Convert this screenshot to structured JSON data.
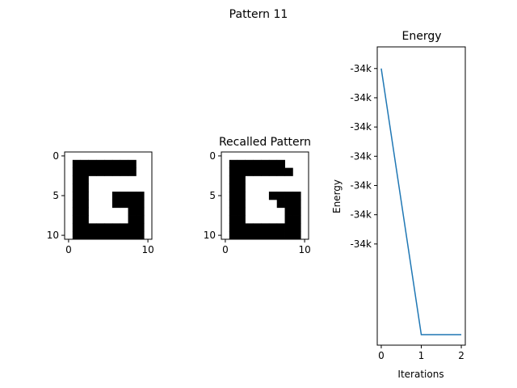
{
  "figure": {
    "title": "Pattern 11"
  },
  "chart_data": [
    {
      "type": "heatmap",
      "title": "",
      "grid_size": [
        11,
        11
      ],
      "xticks": [
        0,
        10
      ],
      "yticks": [
        0,
        5,
        10
      ],
      "colormap": {
        "0": "#ffffff",
        "1": "#000000"
      },
      "matrix": [
        [
          0,
          0,
          0,
          0,
          0,
          0,
          0,
          0,
          0,
          0,
          0
        ],
        [
          0,
          1,
          1,
          1,
          1,
          1,
          1,
          1,
          1,
          0,
          0
        ],
        [
          0,
          1,
          1,
          1,
          1,
          1,
          1,
          1,
          1,
          0,
          0
        ],
        [
          0,
          1,
          1,
          0,
          0,
          0,
          0,
          0,
          0,
          0,
          0
        ],
        [
          0,
          1,
          1,
          0,
          0,
          0,
          0,
          0,
          0,
          0,
          0
        ],
        [
          0,
          1,
          1,
          0,
          0,
          0,
          1,
          1,
          1,
          1,
          0
        ],
        [
          0,
          1,
          1,
          0,
          0,
          0,
          1,
          1,
          1,
          1,
          0
        ],
        [
          0,
          1,
          1,
          0,
          0,
          0,
          0,
          0,
          1,
          1,
          0
        ],
        [
          0,
          1,
          1,
          0,
          0,
          0,
          0,
          0,
          1,
          1,
          0
        ],
        [
          0,
          1,
          1,
          1,
          1,
          1,
          1,
          1,
          1,
          1,
          0
        ],
        [
          0,
          1,
          1,
          1,
          1,
          1,
          1,
          1,
          1,
          1,
          0
        ]
      ]
    },
    {
      "type": "heatmap",
      "title": "Recalled Pattern",
      "grid_size": [
        11,
        11
      ],
      "xticks": [
        0,
        10
      ],
      "yticks": [
        0,
        5,
        10
      ],
      "colormap": {
        "0": "#ffffff",
        "1": "#000000"
      },
      "matrix": [
        [
          0,
          0,
          0,
          0,
          0,
          0,
          0,
          0,
          0,
          0,
          0
        ],
        [
          0,
          1,
          1,
          1,
          1,
          1,
          1,
          1,
          0,
          0,
          0
        ],
        [
          0,
          1,
          1,
          1,
          1,
          1,
          1,
          1,
          1,
          0,
          0
        ],
        [
          0,
          1,
          1,
          0,
          0,
          0,
          0,
          0,
          0,
          0,
          0
        ],
        [
          0,
          1,
          1,
          0,
          0,
          0,
          0,
          0,
          0,
          0,
          0
        ],
        [
          0,
          1,
          1,
          0,
          0,
          0,
          1,
          1,
          1,
          1,
          0
        ],
        [
          0,
          1,
          1,
          0,
          0,
          0,
          0,
          1,
          1,
          1,
          0
        ],
        [
          0,
          1,
          1,
          0,
          0,
          0,
          0,
          0,
          1,
          1,
          0
        ],
        [
          0,
          1,
          1,
          0,
          0,
          0,
          0,
          0,
          1,
          1,
          0
        ],
        [
          0,
          1,
          1,
          1,
          1,
          1,
          1,
          1,
          1,
          1,
          0
        ],
        [
          0,
          1,
          1,
          1,
          1,
          1,
          1,
          1,
          1,
          1,
          0
        ]
      ]
    },
    {
      "type": "line",
      "title": "Energy",
      "xlabel": "Iterations",
      "ylabel": "Energy",
      "x": [
        0,
        1,
        2
      ],
      "series": [
        {
          "values": [
            -34000,
            -34045.5,
            -34045.5
          ]
        }
      ],
      "xlim": [
        -0.1,
        2.1
      ],
      "ylim": [
        -34047.3,
        -33996.3
      ],
      "xticks": [
        0,
        1,
        2
      ],
      "yticks": [
        -34000,
        -34005,
        -34010,
        -34015,
        -34020,
        -34025,
        -34030
      ],
      "ytick_labels": [
        "-34k",
        "-34k",
        "-34k",
        "-34k",
        "-34k",
        "-34k",
        "-34k"
      ],
      "line_color": "#1f77b4"
    }
  ]
}
